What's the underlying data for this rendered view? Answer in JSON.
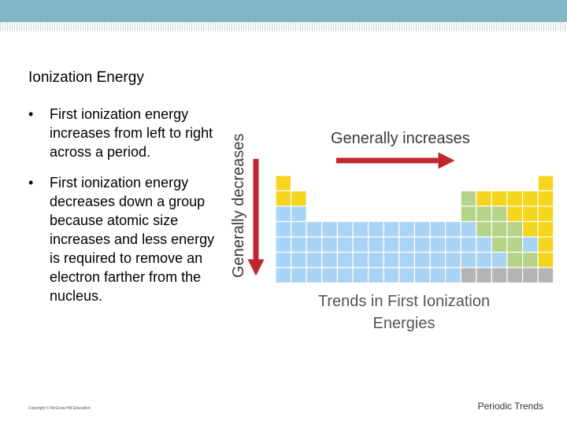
{
  "slide": {
    "title": "Ionization Energy",
    "bullets": [
      "First ionization energy increases from left to right across a period.",
      "First ionization energy decreases down a group because atomic size increases and less energy is required to remove an electron farther from the nucleus."
    ],
    "footer_copyright": "Copyright © McGraw-Hill Education",
    "footer_topic": "Periodic Trends"
  },
  "figure": {
    "label_horizontal": "Generally increases",
    "label_vertical": "Generally decreases",
    "caption_line1": "Trends in First Ionization",
    "caption_line2": "Energies",
    "colors": {
      "arrow": "#c0272d",
      "blue": "#a9d4f5",
      "yellow": "#f6d51f",
      "green": "#b5d48a",
      "gray": "#b4b4b4",
      "cell_border": "#ffffff",
      "label_text": "#3a3a3a",
      "caption_text": "#555555"
    }
  }
}
